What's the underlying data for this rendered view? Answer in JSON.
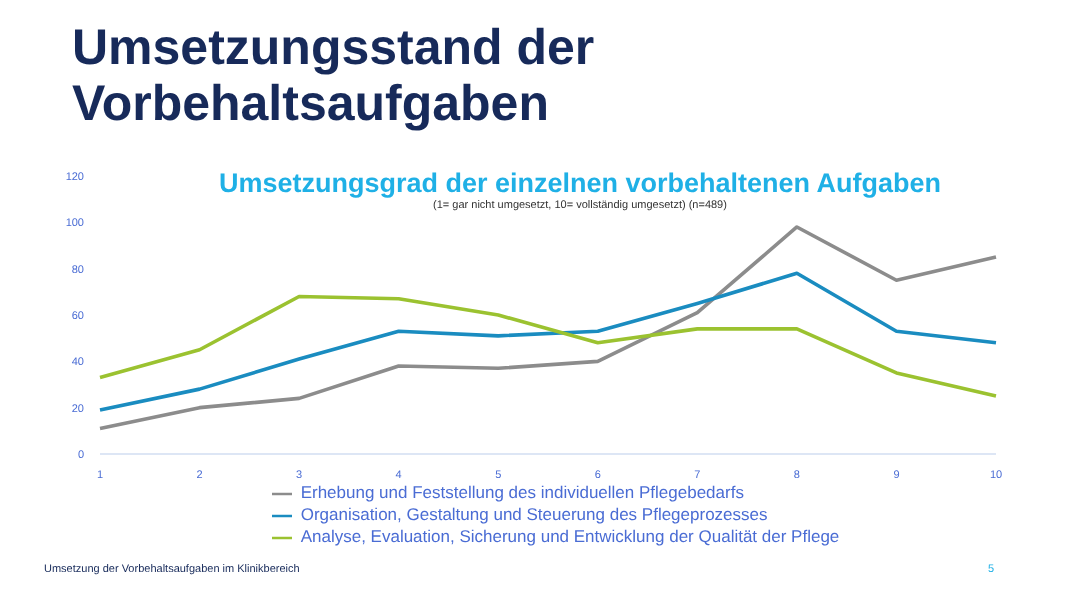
{
  "chart_data": {
    "type": "line",
    "title": "Umsetzungsstand der Vorbehaltsaufgaben",
    "subtitle": "Umsetzungsgrad der einzelnen vorbehaltenen Aufgaben",
    "annotations": [
      "(1= gar nicht umgesetzt, 10= vollständig umgesetzt) (n=489)",
      "Umsetzung der Vorbehaltsaufgaben im Klinikbereich",
      "5"
    ],
    "categories": [
      "1",
      "2",
      "3",
      "4",
      "5",
      "6",
      "7",
      "8",
      "9",
      "10"
    ],
    "series": [
      {
        "name": "Erhebung und Feststellung des individuellen Pflegebedarfs",
        "color": "#8c8c8c",
        "values": [
          11,
          20,
          24,
          38,
          37,
          40,
          61,
          98,
          75,
          85
        ]
      },
      {
        "name": "Organisation, Gestaltung und Steuerung des Pflegeprozesses",
        "color": "#1a8cc0",
        "values": [
          19,
          28,
          41,
          53,
          51,
          53,
          65,
          78,
          53,
          48
        ]
      },
      {
        "name": "Analyse, Evaluation, Sicherung und Entwicklung der Qualität der Pflege",
        "color": "#9bc230",
        "values": [
          33,
          45,
          68,
          67,
          60,
          48,
          54,
          54,
          35,
          25
        ]
      }
    ],
    "ylim": [
      0,
      120
    ],
    "yticks": [
      0,
      20,
      40,
      60,
      80,
      100,
      120
    ],
    "grid": false,
    "legend": "bottom",
    "marker": "none",
    "line_style": "solid"
  }
}
